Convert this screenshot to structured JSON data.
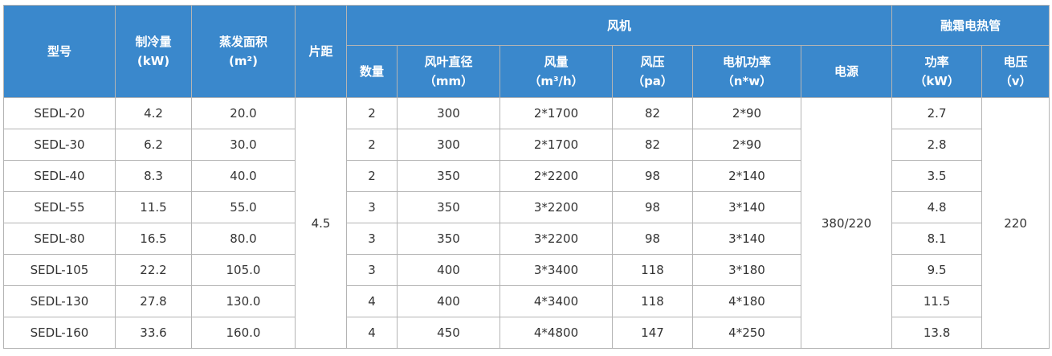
{
  "colors": {
    "header_bg": "#3a88cc",
    "header_text": "#ffffff",
    "border": "#b4b4b4",
    "cell_text": "#333333"
  },
  "headers": {
    "model": "型号",
    "cooling": [
      "制冷量",
      "(kW)"
    ],
    "area": [
      "蒸发面积",
      "(m²)"
    ],
    "pitch": "片距",
    "fan_group": "风机",
    "heater_group": "融霜电热管",
    "fan_qty": "数量",
    "blade_dia": [
      "风叶直径",
      "（mm）"
    ],
    "airflow": [
      "风量",
      "（m³/h）"
    ],
    "pressure": [
      "风压",
      "（pa）"
    ],
    "motor_power": [
      "电机功率",
      "（n*w）"
    ],
    "power_supply": "电源",
    "heater_power": [
      "功率",
      "（kW）"
    ],
    "heater_voltage": [
      "电压",
      "（v）"
    ]
  },
  "pitch_value": "4.5",
  "power_supply_value": "380/220",
  "heater_voltage_value": "220",
  "rows": [
    {
      "model": "SEDL-20",
      "cooling": "4.2",
      "area": "20.0",
      "qty": "2",
      "dia": "300",
      "airflow": "2*1700",
      "pressure": "82",
      "motor": "2*90",
      "heater": "2.7"
    },
    {
      "model": "SEDL-30",
      "cooling": "6.2",
      "area": "30.0",
      "qty": "2",
      "dia": "300",
      "airflow": "2*1700",
      "pressure": "82",
      "motor": "2*90",
      "heater": "2.8"
    },
    {
      "model": "SEDL-40",
      "cooling": "8.3",
      "area": "40.0",
      "qty": "2",
      "dia": "350",
      "airflow": "2*2200",
      "pressure": "98",
      "motor": "2*140",
      "heater": "3.5"
    },
    {
      "model": "SEDL-55",
      "cooling": "11.5",
      "area": "55.0",
      "qty": "3",
      "dia": "350",
      "airflow": "3*2200",
      "pressure": "98",
      "motor": "3*140",
      "heater": "4.8"
    },
    {
      "model": "SEDL-80",
      "cooling": "16.5",
      "area": "80.0",
      "qty": "3",
      "dia": "350",
      "airflow": "3*2200",
      "pressure": "98",
      "motor": "3*140",
      "heater": "8.1"
    },
    {
      "model": "SEDL-105",
      "cooling": "22.2",
      "area": "105.0",
      "qty": "3",
      "dia": "400",
      "airflow": "3*3400",
      "pressure": "118",
      "motor": "3*180",
      "heater": "9.5"
    },
    {
      "model": "SEDL-130",
      "cooling": "27.8",
      "area": "130.0",
      "qty": "4",
      "dia": "400",
      "airflow": "4*3400",
      "pressure": "118",
      "motor": "4*180",
      "heater": "11.5"
    },
    {
      "model": "SEDL-160",
      "cooling": "33.6",
      "area": "160.0",
      "qty": "4",
      "dia": "450",
      "airflow": "4*4800",
      "pressure": "147",
      "motor": "4*250",
      "heater": "13.8"
    }
  ]
}
